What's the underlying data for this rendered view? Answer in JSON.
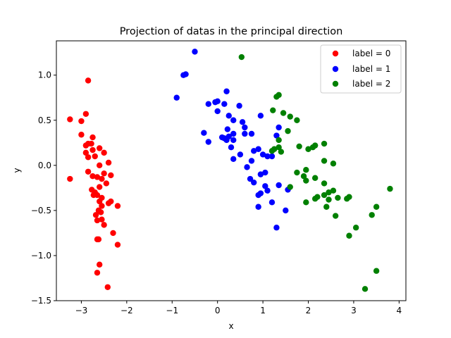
{
  "chart_data": {
    "type": "scatter",
    "title": "Projection of datas in the principal direction",
    "xlabel": "x",
    "ylabel": "y",
    "xlim": [
      -3.55,
      4.15
    ],
    "ylim": [
      -1.5,
      1.38
    ],
    "xticks": [
      -3,
      -2,
      -1,
      0,
      1,
      2,
      3,
      4
    ],
    "yticks": [
      -1.5,
      -1.0,
      -0.5,
      0.0,
      0.5,
      1.0
    ],
    "xtick_labels": [
      "−3",
      "−2",
      "−1",
      "0",
      "1",
      "2",
      "3",
      "4"
    ],
    "ytick_labels": [
      "−1.5",
      "−1.0",
      "−0.5",
      "0.0",
      "0.5",
      "1.0"
    ],
    "grid": false,
    "legend_position": "top-right",
    "series": [
      {
        "name": "label = 0",
        "color": "#ff0000",
        "points": [
          [
            -2.85,
            0.94
          ],
          [
            -2.9,
            0.57
          ],
          [
            -3.25,
            0.51
          ],
          [
            -3.0,
            0.49
          ],
          [
            -3.0,
            0.34
          ],
          [
            -2.75,
            0.31
          ],
          [
            -2.85,
            0.24
          ],
          [
            -2.78,
            0.24
          ],
          [
            -2.9,
            0.22
          ],
          [
            -2.6,
            0.19
          ],
          [
            -2.75,
            0.17
          ],
          [
            -2.5,
            0.14
          ],
          [
            -2.9,
            0.14
          ],
          [
            -2.7,
            0.1
          ],
          [
            -2.85,
            0.09
          ],
          [
            -2.4,
            0.03
          ],
          [
            -2.6,
            0.0
          ],
          [
            -2.85,
            -0.07
          ],
          [
            -2.5,
            -0.09
          ],
          [
            -2.35,
            -0.11
          ],
          [
            -2.75,
            -0.12
          ],
          [
            -2.65,
            -0.13
          ],
          [
            -2.55,
            -0.15
          ],
          [
            -2.45,
            -0.2
          ],
          [
            -2.6,
            -0.24
          ],
          [
            -2.77,
            -0.27
          ],
          [
            -2.7,
            -0.3
          ],
          [
            -2.73,
            -0.33
          ],
          [
            -2.65,
            -0.33
          ],
          [
            -2.55,
            -0.36
          ],
          [
            -2.6,
            -0.4
          ],
          [
            -2.4,
            -0.42
          ],
          [
            -2.35,
            -0.4
          ],
          [
            -2.2,
            -0.45
          ],
          [
            -2.55,
            -0.45
          ],
          [
            -2.62,
            -0.5
          ],
          [
            -2.57,
            -0.52
          ],
          [
            -2.68,
            -0.55
          ],
          [
            -2.55,
            -0.6
          ],
          [
            -2.65,
            -0.61
          ],
          [
            -2.5,
            -0.66
          ],
          [
            -2.3,
            -0.75
          ],
          [
            -2.65,
            -0.82
          ],
          [
            -2.62,
            -0.82
          ],
          [
            -2.2,
            -0.88
          ],
          [
            -2.6,
            -1.1
          ],
          [
            -2.65,
            -1.19
          ],
          [
            -2.42,
            -1.35
          ],
          [
            -3.25,
            -0.15
          ]
        ]
      },
      {
        "name": "label = 1",
        "color": "#0000ff",
        "points": [
          [
            -0.5,
            1.26
          ],
          [
            -0.75,
            1.0
          ],
          [
            -0.7,
            1.01
          ],
          [
            -0.9,
            0.75
          ],
          [
            0.2,
            0.82
          ],
          [
            -0.2,
            0.68
          ],
          [
            -0.05,
            0.7
          ],
          [
            0.0,
            0.71
          ],
          [
            0.15,
            0.68
          ],
          [
            0.48,
            0.66
          ],
          [
            0.0,
            0.6
          ],
          [
            0.95,
            0.55
          ],
          [
            0.25,
            0.55
          ],
          [
            0.35,
            0.5
          ],
          [
            0.55,
            0.48
          ],
          [
            0.6,
            0.42
          ],
          [
            1.35,
            0.42
          ],
          [
            0.22,
            0.4
          ],
          [
            0.35,
            0.35
          ],
          [
            0.6,
            0.35
          ],
          [
            0.75,
            0.35
          ],
          [
            -0.3,
            0.36
          ],
          [
            0.25,
            0.32
          ],
          [
            1.3,
            0.33
          ],
          [
            0.15,
            0.3
          ],
          [
            0.35,
            0.28
          ],
          [
            0.2,
            0.28
          ],
          [
            0.1,
            0.31
          ],
          [
            -0.2,
            0.26
          ],
          [
            0.3,
            0.2
          ],
          [
            0.9,
            0.18
          ],
          [
            0.8,
            0.16
          ],
          [
            1.0,
            0.12
          ],
          [
            0.5,
            0.12
          ],
          [
            1.1,
            0.1
          ],
          [
            1.2,
            0.1
          ],
          [
            0.35,
            0.07
          ],
          [
            0.75,
            0.05
          ],
          [
            0.65,
            -0.02
          ],
          [
            1.05,
            -0.08
          ],
          [
            0.95,
            -0.1
          ],
          [
            0.72,
            -0.15
          ],
          [
            0.8,
            -0.19
          ],
          [
            1.05,
            -0.23
          ],
          [
            1.35,
            -0.22
          ],
          [
            1.1,
            -0.28
          ],
          [
            1.55,
            -0.27
          ],
          [
            0.95,
            -0.31
          ],
          [
            0.9,
            -0.33
          ],
          [
            1.2,
            -0.41
          ],
          [
            0.9,
            -0.46
          ],
          [
            1.5,
            -0.5
          ],
          [
            1.3,
            -0.69
          ]
        ]
      },
      {
        "name": "label = 2",
        "color": "#008000",
        "points": [
          [
            0.53,
            1.2
          ],
          [
            1.35,
            0.78
          ],
          [
            1.3,
            0.76
          ],
          [
            1.22,
            0.61
          ],
          [
            1.45,
            0.58
          ],
          [
            1.6,
            0.54
          ],
          [
            1.75,
            0.5
          ],
          [
            1.55,
            0.38
          ],
          [
            1.35,
            0.28
          ],
          [
            1.35,
            0.2
          ],
          [
            1.8,
            0.21
          ],
          [
            2.0,
            0.18
          ],
          [
            2.1,
            0.2
          ],
          [
            2.15,
            0.22
          ],
          [
            2.35,
            0.24
          ],
          [
            1.25,
            0.18
          ],
          [
            1.2,
            0.16
          ],
          [
            1.4,
            0.15
          ],
          [
            2.35,
            0.05
          ],
          [
            2.55,
            0.02
          ],
          [
            1.95,
            -0.05
          ],
          [
            1.75,
            -0.08
          ],
          [
            1.9,
            -0.12
          ],
          [
            2.15,
            -0.14
          ],
          [
            1.95,
            -0.17
          ],
          [
            2.35,
            -0.2
          ],
          [
            1.6,
            -0.24
          ],
          [
            3.8,
            -0.26
          ],
          [
            2.55,
            -0.28
          ],
          [
            2.45,
            -0.3
          ],
          [
            2.35,
            -0.33
          ],
          [
            2.2,
            -0.35
          ],
          [
            2.15,
            -0.37
          ],
          [
            2.65,
            -0.36
          ],
          [
            2.45,
            -0.38
          ],
          [
            2.9,
            -0.35
          ],
          [
            2.85,
            -0.37
          ],
          [
            1.95,
            -0.41
          ],
          [
            2.4,
            -0.46
          ],
          [
            3.5,
            -0.46
          ],
          [
            3.4,
            -0.55
          ],
          [
            2.6,
            -0.56
          ],
          [
            3.05,
            -0.69
          ],
          [
            2.9,
            -0.78
          ],
          [
            3.5,
            -1.17
          ],
          [
            3.25,
            -1.37
          ]
        ]
      }
    ]
  }
}
